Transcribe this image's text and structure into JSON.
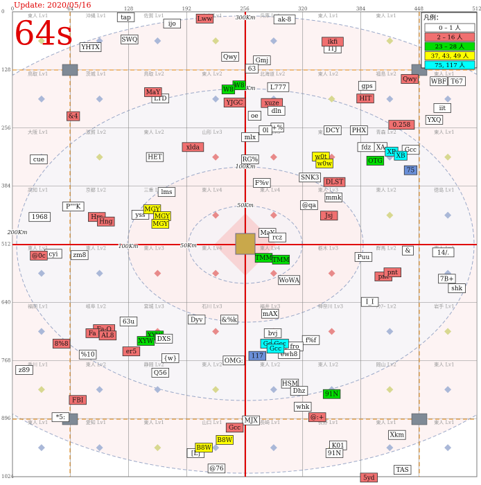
{
  "header": {
    "update": "Update: 2020/05/16",
    "timer": "64s"
  },
  "axes": {
    "xlim": [
      0,
      512
    ],
    "ylim": [
      0,
      1024
    ],
    "x_ticks": [
      0,
      64,
      128,
      192,
      256,
      320,
      384,
      448,
      512
    ],
    "y_ticks": [
      0,
      128,
      256,
      384,
      512,
      640,
      768,
      896,
      1024
    ]
  },
  "regions": [
    [
      "東人 Lv1",
      "沖縄 Lv1",
      "佐賀 Lv1",
      "東人 Lv1",
      "兵庫 Lv1",
      "東人 Lv1",
      "東人 Lv1",
      "大分 Lv1"
    ],
    [
      "鳥取 Lv1",
      "茨城 Lv1",
      "鳥取 Lv2",
      "東人 Lv2",
      "北海道 Lv2",
      "東人 Lv2",
      "福島 Lv2",
      "東人 Lv1"
    ],
    [
      "大阪 Lv1",
      "滋賀 Lv2",
      "東人 Lv2",
      "山形 Lv3",
      "東人 Lv3",
      "東人 Lv3",
      "青森 Lv2",
      "東人 Lv1"
    ],
    [
      "高知 Lv1",
      "京都 Lv2",
      "三重 Lv3",
      "東人 Lv4",
      "東人 Lv4",
      "東人 Lv3",
      "東人 Lv2",
      "徳島 Lv1"
    ],
    [
      "東人 Lv1",
      "東人 Lv2",
      "東人 Lv3",
      "東人 Lv4",
      "東人 Lv4",
      "栃木 Lv3",
      "群馬 Lv2",
      "東人 Lv1"
    ],
    [
      "福岡 Lv1",
      "岐阜 Lv2",
      "宮城 Lv3",
      "石川 Lv3",
      "福井 Lv3",
      "神奈川 Lv3",
      "ｱｸｱｰ Lv2",
      "岩手 Lv1"
    ],
    [
      "香川 Lv1",
      "東人 Lv2",
      "静岡 Lv2",
      "東人 Lv2",
      "東人 Lv2",
      "東人 Lv2",
      "岡山 Lv2",
      "東人 Lv1"
    ],
    [
      "東人 Lv1",
      "愛知 Lv1",
      "東人 Lv1",
      "山口 Lv1",
      "長崎 Lv1",
      "長野 Lv1",
      "東人 Lv1",
      "東人 Lv1"
    ]
  ],
  "distance_labels": [
    "300Km",
    "200Km",
    "100Km",
    "50Km",
    "200Km",
    "100Km",
    "50Km"
  ],
  "legend": {
    "title": "凡例：",
    "entries": [
      {
        "label": "0 – 1 人",
        "color": "#ffffff"
      },
      {
        "label": "2 – 16 人",
        "color": "#f07070"
      },
      {
        "label": "23 – 28 人",
        "color": "#00dd00"
      },
      {
        "label": "37, 43, 49 人",
        "color": "#ffff00"
      },
      {
        "label": "75, 117 人",
        "color": "#00ffff"
      }
    ]
  },
  "markers": [
    {
      "label": "tap",
      "x": 125,
      "y": 12,
      "group": 0
    },
    {
      "label": "ijo",
      "x": 176,
      "y": 26,
      "group": 0
    },
    {
      "label": "YHTX",
      "x": 86,
      "y": 78,
      "group": 0
    },
    {
      "label": "SWQ",
      "x": 129,
      "y": 61,
      "group": 0
    },
    {
      "label": "Lww",
      "x": 212,
      "y": 15,
      "group": 1
    },
    {
      "label": "ak-8",
      "x": 300,
      "y": 17,
      "group": 0
    },
    {
      "label": "ITJ",
      "x": 353,
      "y": 81,
      "group": 0
    },
    {
      "label": "ikfi",
      "x": 353,
      "y": 66,
      "group": 1
    },
    {
      "label": "Qwy",
      "x": 240,
      "y": 99,
      "group": 0
    },
    {
      "label": "Gmj",
      "x": 275,
      "y": 107,
      "group": 0
    },
    {
      "label": "63",
      "x": 264,
      "y": 125,
      "group": 0
    },
    {
      "label": "L777",
      "x": 293,
      "y": 166,
      "group": 0
    },
    {
      "label": "gps",
      "x": 391,
      "y": 163,
      "group": 0
    },
    {
      "label": "WBF",
      "x": 470,
      "y": 153,
      "group": 0
    },
    {
      "label": "T67",
      "x": 490,
      "y": 153,
      "group": 0
    },
    {
      "label": "Qwy",
      "x": 438,
      "y": 148,
      "group": 1
    },
    {
      "label": "HIT",
      "x": 389,
      "y": 191,
      "group": 1
    },
    {
      "label": "LTD",
      "x": 163,
      "y": 191,
      "group": 0
    },
    {
      "label": "MaY",
      "x": 155,
      "y": 177,
      "group": 1
    },
    {
      "label": "W8",
      "x": 250,
      "y": 162,
      "group": 2
    },
    {
      "label": "W8",
      "x": 238,
      "y": 171,
      "group": 2
    },
    {
      "label": "YJGC",
      "x": 245,
      "y": 200,
      "group": 1
    },
    {
      "label": "xuze",
      "x": 286,
      "y": 201,
      "group": 1
    },
    {
      "label": "dln",
      "x": 291,
      "y": 218,
      "group": 0
    },
    {
      "label": "oe",
      "x": 267,
      "y": 229,
      "group": 0
    },
    {
      "label": "iit",
      "x": 474,
      "y": 212,
      "group": 0
    },
    {
      "label": "&4",
      "x": 67,
      "y": 230,
      "group": 1
    },
    {
      "label": "0.258",
      "x": 429,
      "y": 249,
      "group": 1
    },
    {
      "label": "YXQ",
      "x": 465,
      "y": 238,
      "group": 0
    },
    {
      "label": "+%",
      "x": 292,
      "y": 255,
      "group": 0
    },
    {
      "label": "0l",
      "x": 279,
      "y": 261,
      "group": 0
    },
    {
      "label": "mlx",
      "x": 262,
      "y": 276,
      "group": 0
    },
    {
      "label": "DCY",
      "x": 353,
      "y": 261,
      "group": 0
    },
    {
      "label": "PHX",
      "x": 382,
      "y": 261,
      "group": 0
    },
    {
      "label": "xlda",
      "x": 199,
      "y": 298,
      "group": 1
    },
    {
      "label": "fdz",
      "x": 390,
      "y": 298,
      "group": 0
    },
    {
      "label": "XA",
      "x": 406,
      "y": 298,
      "group": 0
    },
    {
      "label": "Gcc",
      "x": 439,
      "y": 304,
      "group": 0
    },
    {
      "label": "OTG",
      "x": 400,
      "y": 328,
      "group": 2
    },
    {
      "label": "XB",
      "x": 418,
      "y": 308,
      "group": 4
    },
    {
      "label": "XB",
      "x": 428,
      "y": 317,
      "group": 4
    },
    {
      "label": "75",
      "x": 439,
      "y": 349,
      "group": 4,
      "color": "#6a8fd8"
    },
    {
      "label": "cue",
      "x": 29,
      "y": 325,
      "group": 0
    },
    {
      "label": "HET",
      "x": 157,
      "y": 320,
      "group": 0
    },
    {
      "label": "RG%",
      "x": 262,
      "y": 325,
      "group": 0
    },
    {
      "label": "w0t",
      "x": 340,
      "y": 319,
      "group": 3
    },
    {
      "label": "w0w",
      "x": 344,
      "y": 334,
      "group": 3
    },
    {
      "label": "SNK3",
      "x": 328,
      "y": 365,
      "group": 0
    },
    {
      "label": "DLST",
      "x": 355,
      "y": 375,
      "group": 1
    },
    {
      "label": "F%v",
      "x": 275,
      "y": 377,
      "group": 0
    },
    {
      "label": "lms",
      "x": 170,
      "y": 397,
      "group": 0
    },
    {
      "label": "mmk",
      "x": 354,
      "y": 409,
      "group": 0
    },
    {
      "label": "@qa",
      "x": 327,
      "y": 426,
      "group": 0
    },
    {
      "label": "P\"\"K",
      "x": 67,
      "y": 429,
      "group": 0
    },
    {
      "label": "yss",
      "x": 141,
      "y": 447,
      "group": 0
    },
    {
      "label": "MGY",
      "x": 154,
      "y": 435,
      "group": 3
    },
    {
      "label": "MGY",
      "x": 165,
      "y": 450,
      "group": 3
    },
    {
      "label": "MGY",
      "x": 163,
      "y": 467,
      "group": 3
    },
    {
      "label": "1968",
      "x": 30,
      "y": 452,
      "group": 0
    },
    {
      "label": "Hrs",
      "x": 93,
      "y": 452,
      "group": 1
    },
    {
      "label": "Hng",
      "x": 103,
      "y": 462,
      "group": 1
    },
    {
      "label": "Jsj",
      "x": 349,
      "y": 449,
      "group": 1
    },
    {
      "label": "MaY",
      "x": 281,
      "y": 487,
      "group": 0
    },
    {
      "label": "rcz",
      "x": 292,
      "y": 497,
      "group": 0
    },
    {
      "label": "TMM",
      "x": 277,
      "y": 542,
      "group": 2
    },
    {
      "label": "TMM",
      "x": 296,
      "y": 546,
      "group": 2
    },
    {
      "label": "cyi",
      "x": 45,
      "y": 533,
      "group": 0
    },
    {
      "label": "@0c",
      "x": 29,
      "y": 537,
      "group": 1
    },
    {
      "label": "zm8",
      "x": 74,
      "y": 536,
      "group": 0
    },
    {
      "label": "&",
      "x": 436,
      "y": 526,
      "group": 0
    },
    {
      "label": "14/.",
      "x": 475,
      "y": 530,
      "group": 0
    },
    {
      "label": "Puu",
      "x": 387,
      "y": 540,
      "group": 0
    },
    {
      "label": "pnt",
      "x": 409,
      "y": 583,
      "group": 1
    },
    {
      "label": "pnt",
      "x": 419,
      "y": 574,
      "group": 1
    },
    {
      "label": "WoWA",
      "x": 305,
      "y": 591,
      "group": 0
    },
    {
      "label": "7B+",
      "x": 479,
      "y": 588,
      "group": 0
    },
    {
      "label": "shk",
      "x": 490,
      "y": 609,
      "group": 0
    },
    {
      "label": "I_I",
      "x": 394,
      "y": 639,
      "group": 0
    },
    {
      "label": "mAX",
      "x": 284,
      "y": 665,
      "group": 0
    },
    {
      "label": "63u",
      "x": 128,
      "y": 682,
      "group": 0
    },
    {
      "label": "Dyv",
      "x": 203,
      "y": 678,
      "group": 0
    },
    {
      "label": "&%k",
      "x": 239,
      "y": 678,
      "group": 0
    },
    {
      "label": "Fa-O",
      "x": 101,
      "y": 699,
      "group": 1
    },
    {
      "label": "Fa",
      "x": 88,
      "y": 708,
      "group": 1
    },
    {
      "label": "AL8",
      "x": 105,
      "y": 713,
      "group": 1
    },
    {
      "label": "XYW",
      "x": 157,
      "y": 713,
      "group": 2
    },
    {
      "label": "XYW",
      "x": 147,
      "y": 725,
      "group": 2
    },
    {
      "label": "DXS",
      "x": 167,
      "y": 720,
      "group": 0
    },
    {
      "label": "bvj",
      "x": 287,
      "y": 708,
      "group": 0
    },
    {
      "label": "f%f",
      "x": 329,
      "y": 723,
      "group": 0
    },
    {
      "label": "8%8",
      "x": 54,
      "y": 731,
      "group": 1
    },
    {
      "label": "fro",
      "x": 311,
      "y": 737,
      "group": 0
    },
    {
      "label": "ewh8",
      "x": 305,
      "y": 754,
      "group": 0
    },
    {
      "label": "Gcc",
      "x": 283,
      "y": 731,
      "group": 4
    },
    {
      "label": "Gcc",
      "x": 295,
      "y": 731,
      "group": 4
    },
    {
      "label": "Gcc",
      "x": 290,
      "y": 742,
      "group": 4
    },
    {
      "label": "er5",
      "x": 131,
      "y": 748,
      "group": 1
    },
    {
      "label": "%10",
      "x": 83,
      "y": 755,
      "group": 0
    },
    {
      "label": "{w}",
      "x": 174,
      "y": 763,
      "group": 0
    },
    {
      "label": "OMG:",
      "x": 244,
      "y": 768,
      "group": 0
    },
    {
      "label": "117",
      "x": 270,
      "y": 758,
      "group": 4,
      "color": "#6a8fd8"
    },
    {
      "label": "z89",
      "x": 13,
      "y": 789,
      "group": 0
    },
    {
      "label": "Q56",
      "x": 163,
      "y": 795,
      "group": 0
    },
    {
      "label": "HSM",
      "x": 306,
      "y": 819,
      "group": 0
    },
    {
      "label": "Dhz",
      "x": 316,
      "y": 835,
      "group": 0
    },
    {
      "label": "91N",
      "x": 352,
      "y": 842,
      "group": 2
    },
    {
      "label": "FBI",
      "x": 72,
      "y": 855,
      "group": 1
    },
    {
      "label": "whk",
      "x": 320,
      "y": 870,
      "group": 0
    },
    {
      "label": "*5:",
      "x": 53,
      "y": 893,
      "group": 0
    },
    {
      "label": "MJX",
      "x": 263,
      "y": 900,
      "group": 0
    },
    {
      "label": "@:+",
      "x": 336,
      "y": 893,
      "group": 1
    },
    {
      "label": "Gcc",
      "x": 245,
      "y": 916,
      "group": 1
    },
    {
      "label": "[L]",
      "x": 202,
      "y": 972,
      "group": 0
    },
    {
      "label": "B8W",
      "x": 234,
      "y": 943,
      "group": 3
    },
    {
      "label": "B8W",
      "x": 211,
      "y": 960,
      "group": 3
    },
    {
      "label": "Xkm",
      "x": 424,
      "y": 932,
      "group": 0
    },
    {
      "label": "K01",
      "x": 359,
      "y": 955,
      "group": 0
    },
    {
      "label": "91N",
      "x": 355,
      "y": 972,
      "group": 0
    },
    {
      "label": "@76",
      "x": 225,
      "y": 1006,
      "group": 0
    },
    {
      "label": "TAS",
      "x": 430,
      "y": 1009,
      "group": 0
    },
    {
      "label": "5yd",
      "x": 393,
      "y": 1026,
      "group": 1
    }
  ]
}
